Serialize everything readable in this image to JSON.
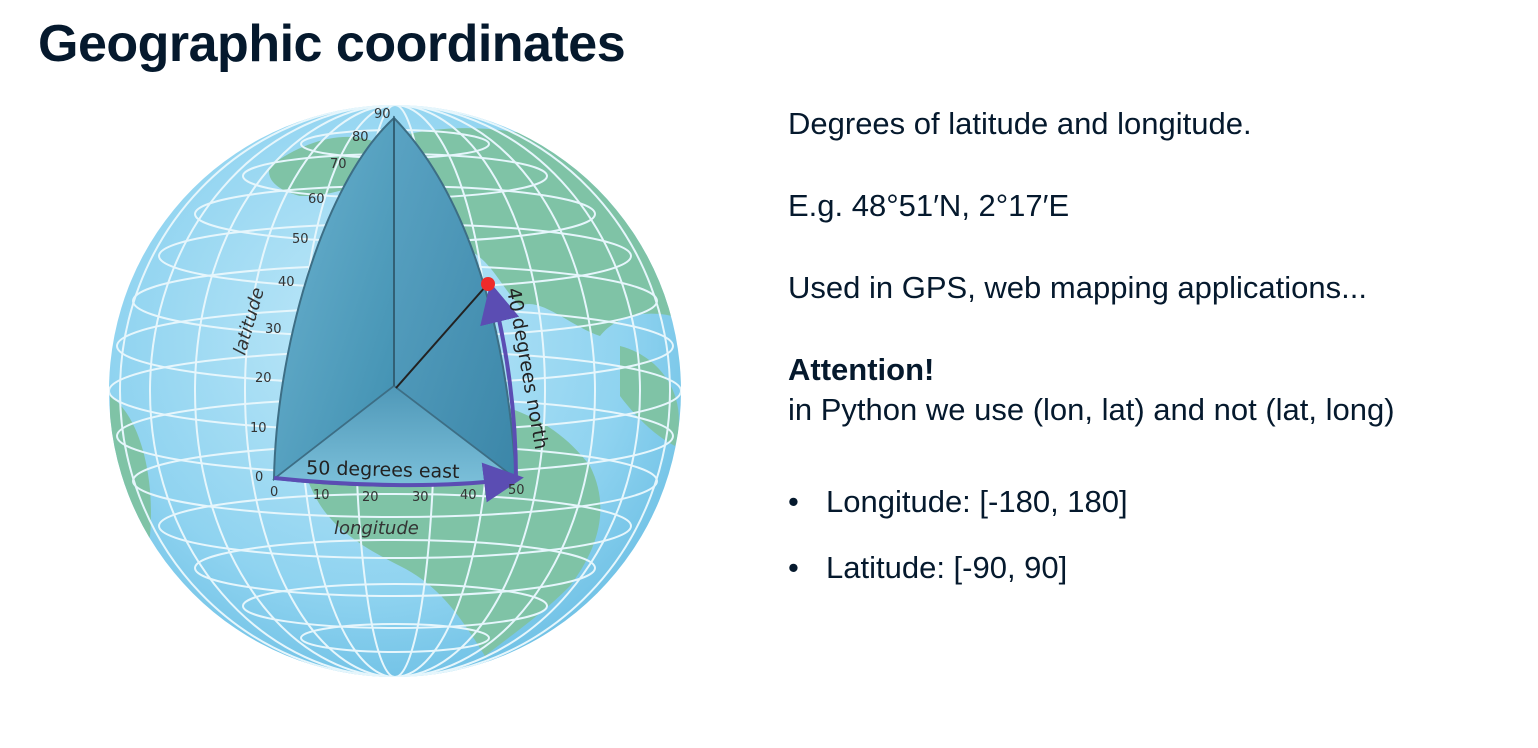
{
  "title": "Geographic coordinates",
  "figure": {
    "latitude_label": "latitude",
    "longitude_label": "longitude",
    "east_label": "50 degrees east",
    "north_label": "40 degrees north",
    "lat_ticks": [
      "0",
      "10",
      "20",
      "30",
      "40",
      "50",
      "60",
      "70",
      "80",
      "90"
    ],
    "lon_ticks": [
      "0",
      "10",
      "20",
      "30",
      "40",
      "50"
    ],
    "colors": {
      "ocean": "#8fd3f0",
      "land": "#7fc3a6",
      "grid": "#e6f6fc",
      "wedge": "#5aa6c5",
      "arrow": "#5b4db3",
      "point": "#ee2b2b"
    }
  },
  "content": {
    "p1": "Degrees of latitude and longitude.",
    "p2": "E.g. 48°51′N, 2°17′E",
    "p3": "Used in GPS, web mapping applications...",
    "attention_heading": "Attention!",
    "attention_text": "in Python we use (lon, lat) and not (lat, long)",
    "bullets": [
      "Longitude: [-180, 180]",
      "Latitude: [-90, 90]"
    ]
  }
}
